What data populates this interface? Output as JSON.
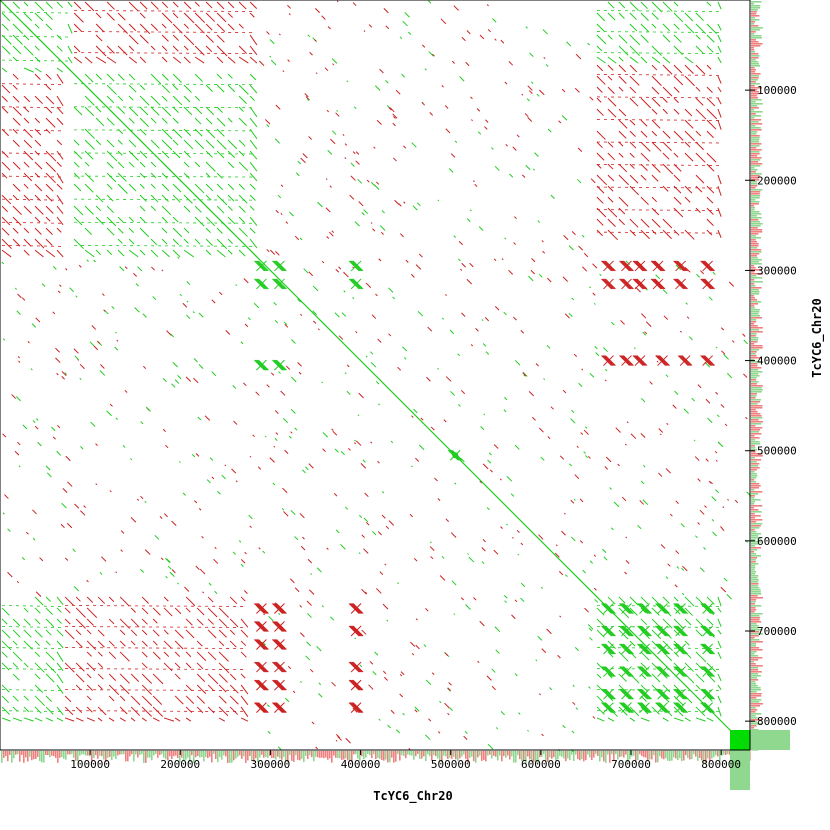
{
  "chart_data": {
    "type": "scatter",
    "title": "",
    "xlabel": "TcYC6_Chr20",
    "ylabel": "TcYC6_Chr20",
    "xlim": [
      0,
      832000
    ],
    "ylim": [
      0,
      832000
    ],
    "x_ticks": [
      {
        "value": 100000,
        "label": "100000"
      },
      {
        "value": 200000,
        "label": "200000"
      },
      {
        "value": 300000,
        "label": "300000"
      },
      {
        "value": 400000,
        "label": "400000"
      },
      {
        "value": 500000,
        "label": "500000"
      },
      {
        "value": 600000,
        "label": "600000"
      },
      {
        "value": 700000,
        "label": "700000"
      },
      {
        "value": 800000,
        "label": "800000"
      }
    ],
    "y_ticks": [
      {
        "value": 100000,
        "label": "100000"
      },
      {
        "value": 200000,
        "label": "200000"
      },
      {
        "value": 300000,
        "label": "300000"
      },
      {
        "value": 400000,
        "label": "400000"
      },
      {
        "value": 500000,
        "label": "500000"
      },
      {
        "value": 600000,
        "label": "600000"
      },
      {
        "value": 700000,
        "label": "700000"
      },
      {
        "value": 800000,
        "label": "800000"
      }
    ],
    "grid": false,
    "colors": {
      "forward": "#22cc22",
      "reverse": "#cc2222",
      "forward_track": "#8fd68f",
      "reverse_track": "#f08080"
    },
    "series": [
      {
        "strand": "forward",
        "style": "diagonal",
        "segments": [
          [
            0,
            0,
            832000,
            832000
          ]
        ]
      },
      {
        "strand": "forward",
        "style": "repeat-block",
        "blocks": [
          [
            0,
            0,
            80000,
            80000
          ],
          [
            80000,
            80000,
            285000,
            285000
          ],
          [
            660000,
            660000,
            800000,
            800000
          ]
        ]
      },
      {
        "strand": "reverse",
        "style": "repeat-block",
        "blocks": [
          [
            80000,
            0,
            285000,
            70000
          ],
          [
            0,
            80000,
            70000,
            285000
          ],
          [
            70000,
            660000,
            275000,
            800000
          ],
          [
            660000,
            70000,
            800000,
            270000
          ]
        ]
      },
      {
        "strand": "forward",
        "style": "repeat-block",
        "blocks": [
          [
            0,
            660000,
            70000,
            800000
          ],
          [
            660000,
            0,
            800000,
            70000
          ]
        ]
      },
      {
        "strand": "forward",
        "style": "cluster",
        "points": [
          [
            290000,
            295000
          ],
          [
            290000,
            315000
          ],
          [
            310000,
            295000
          ],
          [
            310000,
            315000
          ],
          [
            395000,
            295000
          ],
          [
            395000,
            315000
          ],
          [
            290000,
            405000
          ],
          [
            310000,
            405000
          ],
          [
            505000,
            505000
          ]
        ]
      },
      {
        "strand": "reverse",
        "style": "cluster",
        "points": [
          [
            290000,
            675000
          ],
          [
            310000,
            675000
          ],
          [
            290000,
            695000
          ],
          [
            310000,
            695000
          ],
          [
            290000,
            715000
          ],
          [
            310000,
            715000
          ],
          [
            290000,
            740000
          ],
          [
            310000,
            740000
          ],
          [
            290000,
            760000
          ],
          [
            310000,
            760000
          ],
          [
            290000,
            785000
          ],
          [
            310000,
            785000
          ],
          [
            395000,
            675000
          ],
          [
            395000,
            700000
          ],
          [
            395000,
            740000
          ],
          [
            395000,
            760000
          ],
          [
            395000,
            785000
          ],
          [
            675000,
            295000
          ],
          [
            695000,
            295000
          ],
          [
            710000,
            295000
          ],
          [
            730000,
            295000
          ],
          [
            755000,
            295000
          ],
          [
            785000,
            295000
          ],
          [
            675000,
            315000
          ],
          [
            695000,
            315000
          ],
          [
            710000,
            315000
          ],
          [
            730000,
            315000
          ],
          [
            755000,
            315000
          ],
          [
            785000,
            315000
          ],
          [
            675000,
            400000
          ],
          [
            695000,
            400000
          ],
          [
            710000,
            400000
          ],
          [
            735000,
            400000
          ],
          [
            760000,
            400000
          ],
          [
            785000,
            400000
          ]
        ]
      },
      {
        "strand": "forward",
        "style": "cluster",
        "points": [
          [
            675000,
            675000
          ],
          [
            695000,
            675000
          ],
          [
            715000,
            675000
          ],
          [
            735000,
            675000
          ],
          [
            755000,
            675000
          ],
          [
            785000,
            675000
          ],
          [
            675000,
            700000
          ],
          [
            695000,
            700000
          ],
          [
            715000,
            700000
          ],
          [
            735000,
            700000
          ],
          [
            755000,
            700000
          ],
          [
            785000,
            700000
          ],
          [
            675000,
            720000
          ],
          [
            695000,
            720000
          ],
          [
            715000,
            720000
          ],
          [
            735000,
            720000
          ],
          [
            755000,
            720000
          ],
          [
            785000,
            720000
          ],
          [
            675000,
            745000
          ],
          [
            695000,
            745000
          ],
          [
            715000,
            745000
          ],
          [
            735000,
            745000
          ],
          [
            755000,
            745000
          ],
          [
            785000,
            745000
          ],
          [
            675000,
            770000
          ],
          [
            695000,
            770000
          ],
          [
            715000,
            770000
          ],
          [
            735000,
            770000
          ],
          [
            755000,
            770000
          ],
          [
            785000,
            770000
          ],
          [
            675000,
            785000
          ],
          [
            695000,
            785000
          ],
          [
            715000,
            785000
          ],
          [
            735000,
            785000
          ],
          [
            755000,
            785000
          ],
          [
            785000,
            785000
          ]
        ]
      },
      {
        "strand": "mixed",
        "style": "scattered",
        "regions": [
          [
            285000,
            285000,
            660000,
            660000
          ],
          [
            0,
            285000,
            285000,
            660000
          ],
          [
            285000,
            0,
            660000,
            285000
          ],
          [
            660000,
            285000,
            832000,
            660000
          ],
          [
            285000,
            660000,
            660000,
            832000
          ]
        ]
      }
    ]
  }
}
